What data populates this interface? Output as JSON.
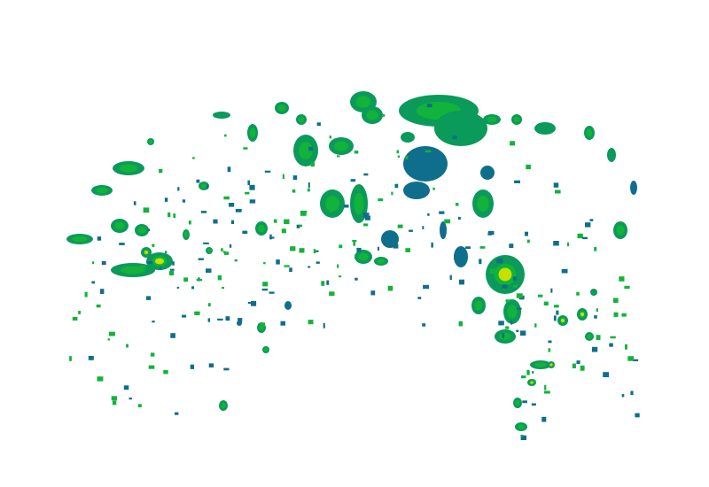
{
  "map": {
    "layer": "radar-reflectivity",
    "background": "#ffffff",
    "palette": {
      "light": "#0f6e8c",
      "moderate_low": "#0a9a5a",
      "moderate": "#11b33a",
      "moderate_high": "#55cc22",
      "heavy": "#c8e000",
      "very_heavy": "#f0c000",
      "intense": "#e05020"
    }
  }
}
